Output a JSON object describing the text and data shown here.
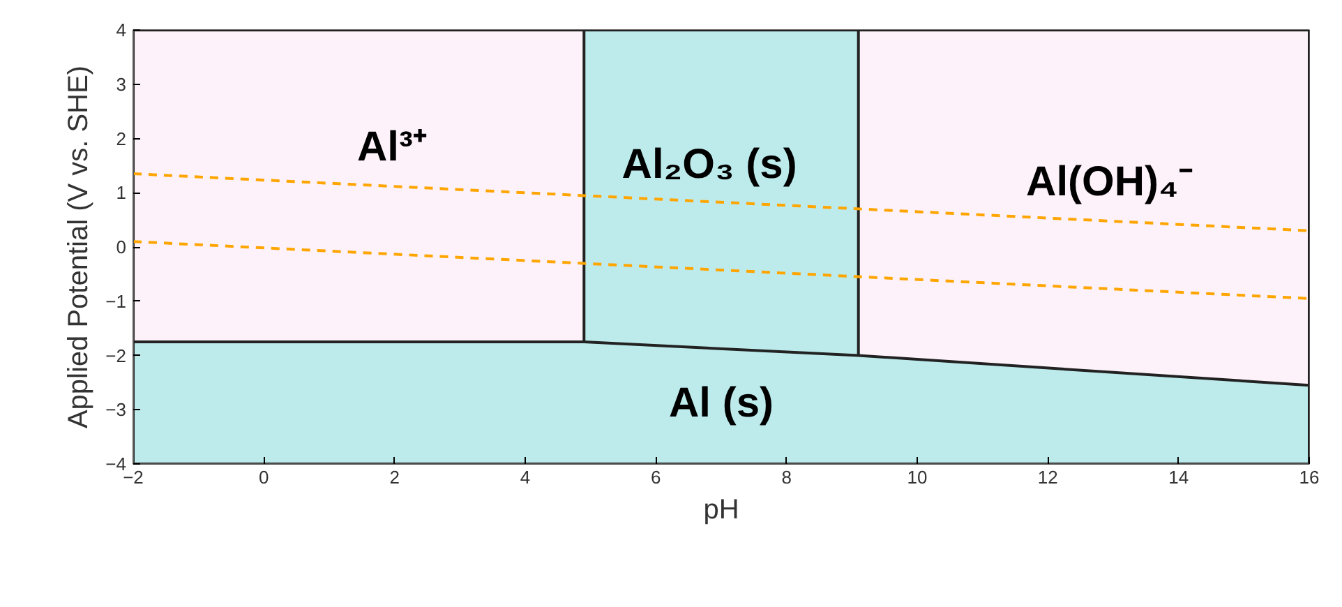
{
  "chart_data": {
    "type": "area",
    "xlabel": "pH",
    "ylabel": "Applied Potential (V vs. SHE)",
    "xlim": [
      -2,
      16
    ],
    "ylim": [
      -4,
      4
    ],
    "xticks": [
      -2,
      0,
      2,
      4,
      6,
      8,
      10,
      12,
      14,
      16
    ],
    "yticks": [
      -4,
      -3,
      -2,
      -1,
      0,
      1,
      2,
      3,
      4
    ],
    "bands": [
      {
        "axis": "x",
        "from": -2,
        "to": 16,
        "color": "#fdf2fa"
      },
      {
        "axis": "x",
        "from": 4.9,
        "to": 9.1,
        "color": "#bdebec"
      }
    ],
    "series": [
      {
        "color": "#bdebec",
        "x": [
          -2,
          -2,
          4.9,
          9.1,
          16,
          16
        ],
        "values": [
          -4,
          -1.75,
          -1.75,
          -2.0,
          -2.55,
          -4
        ]
      },
      {
        "type": "line",
        "color": "#ffa500",
        "line_style": "dashed",
        "x": [
          -2,
          16
        ],
        "values": [
          1.35,
          0.3
        ]
      },
      {
        "type": "line",
        "color": "#ffa500",
        "line_style": "dashed",
        "x": [
          -2,
          16
        ],
        "values": [
          0.1,
          -0.95
        ]
      }
    ],
    "annotations": [
      "Al³⁺",
      "Al₂O₃ (s)",
      "Al(OH)₄⁻",
      "Al (s)"
    ]
  }
}
